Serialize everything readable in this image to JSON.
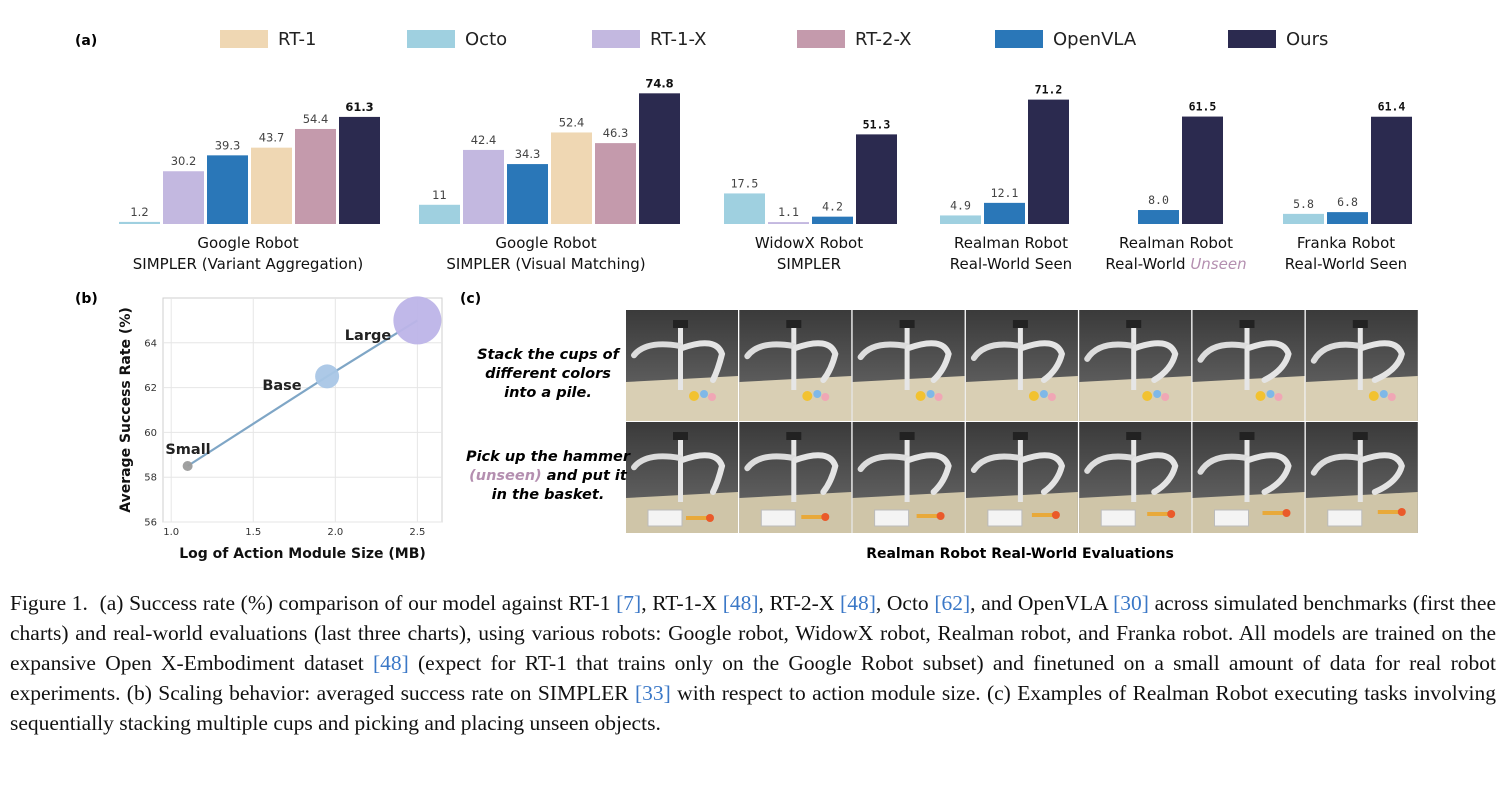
{
  "panel_a": {
    "label": "(a)",
    "legend": [
      {
        "name": "RT-1",
        "color": "#efd7b3"
      },
      {
        "name": "Octo",
        "color": "#9fd0e0"
      },
      {
        "name": "RT-1-X",
        "color": "#c3b8e0"
      },
      {
        "name": "RT-2-X",
        "color": "#c49aac"
      },
      {
        "name": "OpenVLA",
        "color": "#2a77b8"
      },
      {
        "name": "Ours",
        "color": "#2b2a4f"
      }
    ]
  },
  "chart_data": [
    {
      "type": "bar",
      "title_lines": [
        "Google Robot",
        "SIMPLER (Variant Aggregation)"
      ],
      "bars": [
        {
          "series": "Octo",
          "label": "1.2",
          "value": 1.2
        },
        {
          "series": "RT-1-X",
          "label": "30.2",
          "value": 30.2
        },
        {
          "series": "OpenVLA",
          "label": "39.3",
          "value": 39.3
        },
        {
          "series": "RT-1",
          "label": "43.7",
          "value": 43.7
        },
        {
          "series": "RT-2-X",
          "label": "54.4",
          "value": 54.4
        },
        {
          "series": "Ours",
          "label": "61.3",
          "value": 61.3
        }
      ]
    },
    {
      "type": "bar",
      "title_lines": [
        "Google Robot",
        "SIMPLER (Visual Matching)"
      ],
      "bars": [
        {
          "series": "Octo",
          "label": "11",
          "value": 11
        },
        {
          "series": "RT-1-X",
          "label": "42.4",
          "value": 42.4
        },
        {
          "series": "OpenVLA",
          "label": "34.3",
          "value": 34.3
        },
        {
          "series": "RT-1",
          "label": "52.4",
          "value": 52.4
        },
        {
          "series": "RT-2-X",
          "label": "46.3",
          "value": 46.3
        },
        {
          "series": "Ours",
          "label": "74.8",
          "value": 74.8
        }
      ]
    },
    {
      "type": "bar",
      "title_lines": [
        "WidowX Robot",
        "SIMPLER"
      ],
      "bars": [
        {
          "series": "Octo",
          "label": "17.5",
          "value": 17.5
        },
        {
          "series": "RT-1-X",
          "label": "1.1",
          "value": 1.1
        },
        {
          "series": "OpenVLA",
          "label": "4.2",
          "value": 4.2
        },
        {
          "series": "Ours",
          "label": "51.3",
          "value": 51.3
        }
      ]
    },
    {
      "type": "bar",
      "title_lines": [
        "Realman Robot",
        "Real-World Seen"
      ],
      "bars": [
        {
          "series": "Octo",
          "label": "4.9",
          "value": 4.9
        },
        {
          "series": "OpenVLA",
          "label": "12.1",
          "value": 12.1
        },
        {
          "series": "Ours",
          "label": "71.2",
          "value": 71.2
        }
      ]
    },
    {
      "type": "bar",
      "title_lines": [
        "Realman Robot",
        "Real-World Unseen"
      ],
      "bars": [
        {
          "series": "OpenVLA",
          "label": "8.0",
          "value": 8.0
        },
        {
          "series": "Ours",
          "label": "61.5",
          "value": 61.5
        }
      ]
    },
    {
      "type": "bar",
      "title_lines": [
        "Franka Robot",
        "Real-World Seen"
      ],
      "bars": [
        {
          "series": "Octo",
          "label": "5.8",
          "value": 5.8
        },
        {
          "series": "OpenVLA",
          "label": "6.8",
          "value": 6.8
        },
        {
          "series": "Ours",
          "label": "61.4",
          "value": 61.4
        }
      ]
    },
    {
      "type": "scatter",
      "xlabel": "Log of Action Module Size (MB)",
      "ylabel": "Average Success Rate (%)",
      "xlim": [
        0.95,
        2.65
      ],
      "ylim": [
        56,
        66
      ],
      "xticks": [
        "1.0",
        "1.5",
        "2.0",
        "2.5"
      ],
      "yticks": [
        "56",
        "58",
        "60",
        "62",
        "64"
      ],
      "grid": true,
      "points": [
        {
          "label": "Small",
          "x": 1.1,
          "y": 58.5,
          "color": "#9b9b9b"
        },
        {
          "label": "Base",
          "x": 1.95,
          "y": 62.5,
          "color": "#a9c6e6"
        },
        {
          "label": "Large",
          "x": 2.5,
          "y": 65.0,
          "color": "#bdb4e8"
        }
      ]
    }
  ],
  "panel_b": {
    "label": "(b)"
  },
  "panel_c": {
    "label": "(c)",
    "task1_lines": [
      "Stack the cups of",
      "different colors",
      "into a pile."
    ],
    "task2_line1": "Pick up the hammer",
    "task2_unseen": "(unseen)",
    "task2_line2_rest": " and put it",
    "task2_line3": "in the basket.",
    "footer": "Realman Robot Real-World Evaluations",
    "unseen_color": "#b48fb0"
  },
  "caption": {
    "fig": "Figure 1.",
    "s1": " (a) Success rate (%) comparison of our model against RT-1 ",
    "r1": "[7]",
    "s2": ", RT-1-X ",
    "r2": "[48]",
    "s3": ", RT-2-X ",
    "r3": "[48]",
    "s4": ", Octo ",
    "r4": "[62]",
    "s5": ", and OpenVLA ",
    "r5": "[30]",
    "s6": " across simulated benchmarks (first thee charts) and real-world evaluations (last three charts), using various robots: Google robot, WidowX robot, Realman robot, and Franka robot. All models are trained on the expansive Open X-Embodiment dataset ",
    "r6": "[48]",
    "s7": " (expect for RT-1 that trains only on the Google Robot subset) and finetuned on a small amount of data for real robot experiments. (b) Scaling behavior: averaged success rate on SIMPLER ",
    "r7": "[33]",
    "s8": " with respect to action module size. (c) Examples of Realman Robot executing tasks involving sequentially stacking multiple cups and picking and placing unseen objects."
  }
}
